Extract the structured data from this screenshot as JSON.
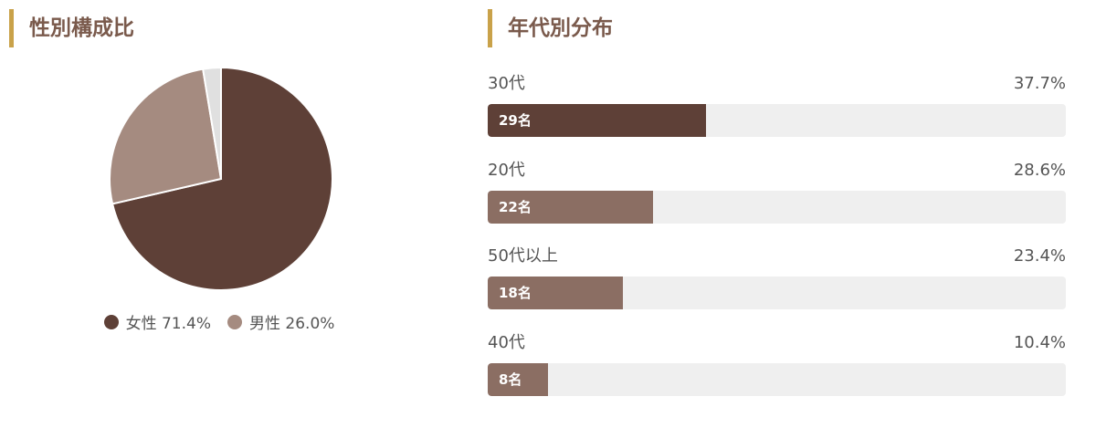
{
  "gender": {
    "title": "性別構成比",
    "legend": [
      {
        "label": "女性 71.4%",
        "color": "#5e4037"
      },
      {
        "label": "男性 26.0%",
        "color": "#a58b80"
      }
    ]
  },
  "age": {
    "title": "年代別分布"
  },
  "chart_data": [
    {
      "type": "pie",
      "title": "性別構成比",
      "slices": [
        {
          "name": "女性",
          "value": 71.4,
          "color": "#5e4037"
        },
        {
          "name": "男性",
          "value": 26.0,
          "color": "#a58b80"
        },
        {
          "name": "",
          "value": 2.6,
          "color": "#e0e0e0"
        }
      ],
      "legend": "bottom"
    },
    {
      "type": "bar",
      "title": "年代別分布",
      "orientation": "horizontal",
      "categories": [
        "30代",
        "20代",
        "50代以上",
        "40代"
      ],
      "values": [
        37.7,
        28.6,
        23.4,
        10.4
      ],
      "value_labels": [
        "37.7%",
        "28.6%",
        "23.4%",
        "10.4%"
      ],
      "count_labels": [
        "29名",
        "22名",
        "18名",
        "8名"
      ],
      "colors": [
        "#5e4037",
        "#8b6e63",
        "#8b6e63",
        "#8b6e63"
      ],
      "track_color": "#efefef"
    }
  ]
}
